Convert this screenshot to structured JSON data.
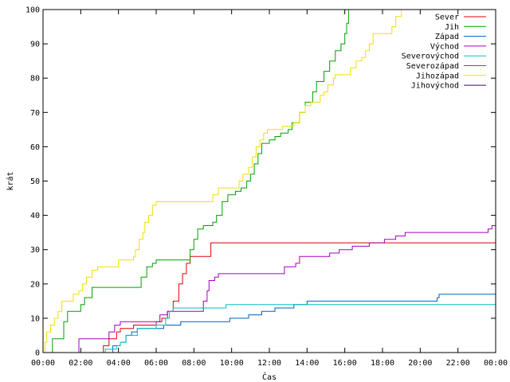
{
  "chart_data": {
    "type": "line",
    "title": "",
    "xlabel": "Čas",
    "ylabel": "krát",
    "xlim": [
      0,
      24
    ],
    "ylim": [
      0,
      100
    ],
    "grid": false,
    "legend_position": "top-right",
    "x_ticks": [
      {
        "value": 0,
        "label": "00:00"
      },
      {
        "value": 2,
        "label": "02:00"
      },
      {
        "value": 4,
        "label": "04:00"
      },
      {
        "value": 6,
        "label": "06:00"
      },
      {
        "value": 8,
        "label": "08:00"
      },
      {
        "value": 10,
        "label": "10:00"
      },
      {
        "value": 12,
        "label": "12:00"
      },
      {
        "value": 14,
        "label": "14:00"
      },
      {
        "value": 16,
        "label": "16:00"
      },
      {
        "value": 18,
        "label": "18:00"
      },
      {
        "value": 20,
        "label": "20:00"
      },
      {
        "value": 22,
        "label": "22:00"
      },
      {
        "value": 24,
        "label": "00:00"
      }
    ],
    "y_ticks": [
      {
        "value": 0,
        "label": "0"
      },
      {
        "value": 10,
        "label": "10"
      },
      {
        "value": 20,
        "label": "20"
      },
      {
        "value": 30,
        "label": "30"
      },
      {
        "value": 40,
        "label": "40"
      },
      {
        "value": 50,
        "label": "50"
      },
      {
        "value": 60,
        "label": "60"
      },
      {
        "value": 70,
        "label": "70"
      },
      {
        "value": 80,
        "label": "80"
      },
      {
        "value": 90,
        "label": "90"
      },
      {
        "value": 100,
        "label": "100"
      }
    ],
    "series": [
      {
        "name": "Sever",
        "color": "#e00000",
        "points": [
          [
            2.9,
            0
          ],
          [
            3.2,
            2
          ],
          [
            3.5,
            4
          ],
          [
            3.9,
            6
          ],
          [
            4.1,
            7
          ],
          [
            4.5,
            7
          ],
          [
            4.8,
            8
          ],
          [
            5.2,
            8
          ],
          [
            5.7,
            8
          ],
          [
            6.0,
            9
          ],
          [
            6.3,
            10
          ],
          [
            6.6,
            12
          ],
          [
            6.9,
            15
          ],
          [
            7.2,
            20
          ],
          [
            7.4,
            23
          ],
          [
            7.6,
            26
          ],
          [
            7.8,
            28
          ],
          [
            8.1,
            28
          ],
          [
            8.5,
            28
          ],
          [
            8.8,
            28
          ],
          [
            8.9,
            32
          ],
          [
            9.5,
            32
          ],
          [
            12,
            32
          ],
          [
            16,
            32
          ],
          [
            20,
            32
          ],
          [
            24,
            32
          ]
        ]
      },
      {
        "name": "Jih",
        "color": "#00a000",
        "points": [
          [
            0,
            0
          ],
          [
            0.4,
            0
          ],
          [
            0.5,
            4
          ],
          [
            1.0,
            4
          ],
          [
            1.1,
            9
          ],
          [
            1.3,
            12
          ],
          [
            1.8,
            12
          ],
          [
            2.0,
            14
          ],
          [
            2.2,
            16
          ],
          [
            2.6,
            19
          ],
          [
            4.0,
            19
          ],
          [
            5.0,
            19
          ],
          [
            5.2,
            22
          ],
          [
            5.5,
            25
          ],
          [
            5.8,
            26
          ],
          [
            6.0,
            27
          ],
          [
            7.7,
            27
          ],
          [
            7.8,
            30
          ],
          [
            8.0,
            33
          ],
          [
            8.2,
            36
          ],
          [
            8.5,
            37
          ],
          [
            9.0,
            38
          ],
          [
            9.2,
            40
          ],
          [
            9.5,
            44
          ],
          [
            9.8,
            46
          ],
          [
            10.2,
            47
          ],
          [
            10.5,
            48
          ],
          [
            10.8,
            50
          ],
          [
            11.0,
            52
          ],
          [
            11.2,
            55
          ],
          [
            11.4,
            58
          ],
          [
            11.6,
            61
          ],
          [
            12.0,
            62
          ],
          [
            12.3,
            63
          ],
          [
            12.6,
            64
          ],
          [
            13.0,
            65
          ],
          [
            13.2,
            67
          ],
          [
            13.6,
            70
          ],
          [
            13.9,
            73
          ],
          [
            14.3,
            76
          ],
          [
            14.5,
            79
          ],
          [
            14.9,
            82
          ],
          [
            15.2,
            85
          ],
          [
            15.5,
            88
          ],
          [
            15.8,
            90
          ],
          [
            16.0,
            93
          ],
          [
            16.1,
            96
          ],
          [
            16.2,
            100
          ]
        ]
      },
      {
        "name": "Západ",
        "color": "#0060c0",
        "points": [
          [
            3.0,
            0
          ],
          [
            3.5,
            0
          ],
          [
            3.7,
            2
          ],
          [
            4.1,
            3
          ],
          [
            4.4,
            5
          ],
          [
            4.7,
            6
          ],
          [
            5.0,
            7
          ],
          [
            6.0,
            7
          ],
          [
            6.4,
            8
          ],
          [
            6.8,
            8
          ],
          [
            7.3,
            9
          ],
          [
            8.5,
            9
          ],
          [
            9.0,
            9
          ],
          [
            9.9,
            10
          ],
          [
            10.9,
            11
          ],
          [
            11.6,
            12
          ],
          [
            12.3,
            13
          ],
          [
            13.3,
            14
          ],
          [
            14.0,
            15
          ],
          [
            16.0,
            15
          ],
          [
            18.0,
            15
          ],
          [
            20.9,
            16
          ],
          [
            21.0,
            17
          ],
          [
            24,
            17
          ]
        ]
      },
      {
        "name": "Východ",
        "color": "#a000c0",
        "points": [
          [
            1.7,
            0
          ],
          [
            1.9,
            4
          ],
          [
            2.5,
            4
          ],
          [
            3.3,
            4
          ],
          [
            3.5,
            6
          ],
          [
            3.8,
            8
          ],
          [
            4.1,
            9
          ],
          [
            5.5,
            9
          ],
          [
            6.0,
            9
          ],
          [
            6.2,
            11
          ],
          [
            6.6,
            12
          ],
          [
            7.2,
            12
          ],
          [
            8.3,
            12
          ],
          [
            8.5,
            15
          ],
          [
            8.7,
            18
          ],
          [
            8.8,
            21
          ],
          [
            9.1,
            22
          ],
          [
            9.3,
            23
          ],
          [
            12.5,
            23
          ],
          [
            12.8,
            25
          ],
          [
            13.4,
            26
          ],
          [
            13.6,
            28
          ],
          [
            14.5,
            28
          ],
          [
            15.2,
            29
          ],
          [
            15.7,
            30
          ],
          [
            16.4,
            31
          ],
          [
            17.3,
            32
          ],
          [
            17.9,
            32
          ],
          [
            18.1,
            33
          ],
          [
            18.7,
            34
          ],
          [
            19.2,
            35
          ],
          [
            23.5,
            35
          ],
          [
            23.6,
            36
          ],
          [
            23.8,
            37
          ],
          [
            24,
            38
          ]
        ]
      },
      {
        "name": "Severovýchod",
        "color": "#00c0c0",
        "points": [
          [
            3.0,
            0
          ],
          [
            3.3,
            1
          ],
          [
            3.9,
            2
          ],
          [
            4.1,
            3
          ],
          [
            4.4,
            5
          ],
          [
            5.0,
            7
          ],
          [
            6.0,
            8
          ],
          [
            6.5,
            10
          ],
          [
            6.7,
            12
          ],
          [
            6.9,
            13
          ],
          [
            8.0,
            13
          ],
          [
            8.5,
            13
          ],
          [
            9.7,
            14
          ],
          [
            11,
            14
          ],
          [
            14,
            14
          ],
          [
            18,
            14
          ],
          [
            24,
            14
          ]
        ]
      },
      {
        "name": "Severozápad",
        "color": "#c04000",
        "points": []
      },
      {
        "name": "Jihozápad",
        "color": "#f0e000",
        "points": [
          [
            0,
            0
          ],
          [
            0.1,
            3
          ],
          [
            0.2,
            6
          ],
          [
            0.4,
            8
          ],
          [
            0.6,
            10
          ],
          [
            0.8,
            12
          ],
          [
            1.0,
            15
          ],
          [
            1.4,
            15
          ],
          [
            1.6,
            17
          ],
          [
            1.9,
            18
          ],
          [
            2.1,
            20
          ],
          [
            2.3,
            22
          ],
          [
            2.6,
            24
          ],
          [
            2.9,
            25
          ],
          [
            3.9,
            25
          ],
          [
            4.0,
            27
          ],
          [
            4.6,
            27
          ],
          [
            4.8,
            28
          ],
          [
            4.9,
            30
          ],
          [
            5.1,
            33
          ],
          [
            5.3,
            35
          ],
          [
            5.4,
            38
          ],
          [
            5.6,
            40
          ],
          [
            5.8,
            43
          ],
          [
            6.0,
            44
          ],
          [
            8.0,
            44
          ],
          [
            8.9,
            44
          ],
          [
            9.0,
            46
          ],
          [
            9.3,
            48
          ],
          [
            10.3,
            48
          ],
          [
            10.4,
            50
          ],
          [
            10.6,
            52
          ],
          [
            10.9,
            54
          ],
          [
            11.1,
            57
          ],
          [
            11.3,
            60
          ],
          [
            11.5,
            62
          ],
          [
            11.7,
            64
          ],
          [
            11.9,
            65
          ],
          [
            12.4,
            65
          ],
          [
            12.7,
            66
          ],
          [
            13.3,
            67
          ],
          [
            13.6,
            70
          ],
          [
            13.9,
            72
          ],
          [
            14.2,
            73
          ],
          [
            14.7,
            75
          ],
          [
            14.9,
            76
          ],
          [
            15.1,
            78
          ],
          [
            15.4,
            80
          ],
          [
            15.5,
            81
          ],
          [
            16.1,
            81
          ],
          [
            16.3,
            83
          ],
          [
            16.6,
            85
          ],
          [
            16.9,
            86
          ],
          [
            17.1,
            88
          ],
          [
            17.3,
            90
          ],
          [
            17.5,
            93
          ],
          [
            18.3,
            93
          ],
          [
            18.5,
            95
          ],
          [
            18.7,
            98
          ],
          [
            19.0,
            100
          ]
        ]
      },
      {
        "name": "Jihovýchod",
        "color": "#400080",
        "points": []
      }
    ]
  }
}
